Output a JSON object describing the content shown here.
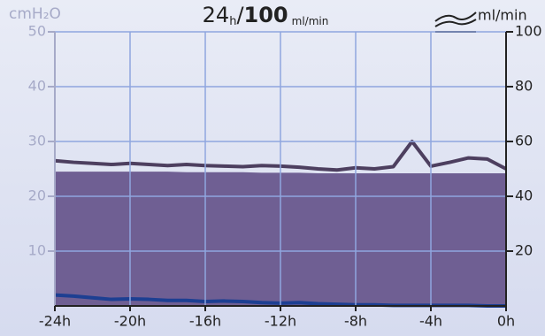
{
  "chart_data": {
    "type": "line",
    "title_parts": [
      "24",
      "h",
      "/",
      "100",
      "ml/min"
    ],
    "y_label": "cmH₂O",
    "y2_label": "ml/min",
    "x": [
      -24,
      -23,
      -22,
      -21,
      -20,
      -19,
      -18,
      -17,
      -16,
      -15,
      -14,
      -13,
      -12,
      -11,
      -10,
      -9,
      -8,
      -7,
      -6,
      -5,
      -4,
      -3,
      -2,
      -1,
      0
    ],
    "xlim": [
      -24,
      0
    ],
    "xticks": [
      {
        "value": -24,
        "label": "-24h"
      },
      {
        "value": -20,
        "label": "-20h"
      },
      {
        "value": -16,
        "label": "-16h"
      },
      {
        "value": -12,
        "label": "-12h"
      },
      {
        "value": -8,
        "label": "-8h"
      },
      {
        "value": -4,
        "label": "-4h"
      },
      {
        "value": 0,
        "label": "0h"
      }
    ],
    "ylim": [
      0,
      50
    ],
    "yticks": [
      10,
      20,
      30,
      40,
      50
    ],
    "y2lim": [
      0,
      100
    ],
    "y2ticks": [
      20,
      40,
      60,
      80,
      100
    ],
    "grid": true,
    "series": [
      {
        "color": "#6f5f93",
        "fill": true,
        "values": [
          24.5,
          24.5,
          24.5,
          24.5,
          24.5,
          24.5,
          24.5,
          24.4,
          24.4,
          24.4,
          24.4,
          24.3,
          24.3,
          24.3,
          24.2,
          24.2,
          24.2,
          24.2,
          24.2,
          24.2,
          24.2,
          24.2,
          24.2,
          24.2,
          24.2
        ]
      },
      {
        "color": "#4d3f5f",
        "fill": false,
        "values": [
          26.5,
          26.2,
          26.0,
          25.8,
          26.0,
          25.8,
          25.6,
          25.8,
          25.6,
          25.5,
          25.4,
          25.6,
          25.5,
          25.3,
          25.0,
          24.8,
          25.2,
          25.0,
          25.4,
          30.0,
          25.5,
          26.2,
          27.0,
          26.8,
          25.0
        ]
      },
      {
        "color": "#1d3f92",
        "fill": false,
        "values": [
          2.0,
          1.8,
          1.5,
          1.2,
          1.3,
          1.2,
          1.0,
          1.0,
          0.8,
          0.9,
          0.8,
          0.6,
          0.5,
          0.6,
          0.4,
          0.3,
          0.2,
          0.2,
          0.1,
          0.1,
          0.1,
          0.1,
          0.1,
          0,
          0
        ]
      }
    ]
  }
}
